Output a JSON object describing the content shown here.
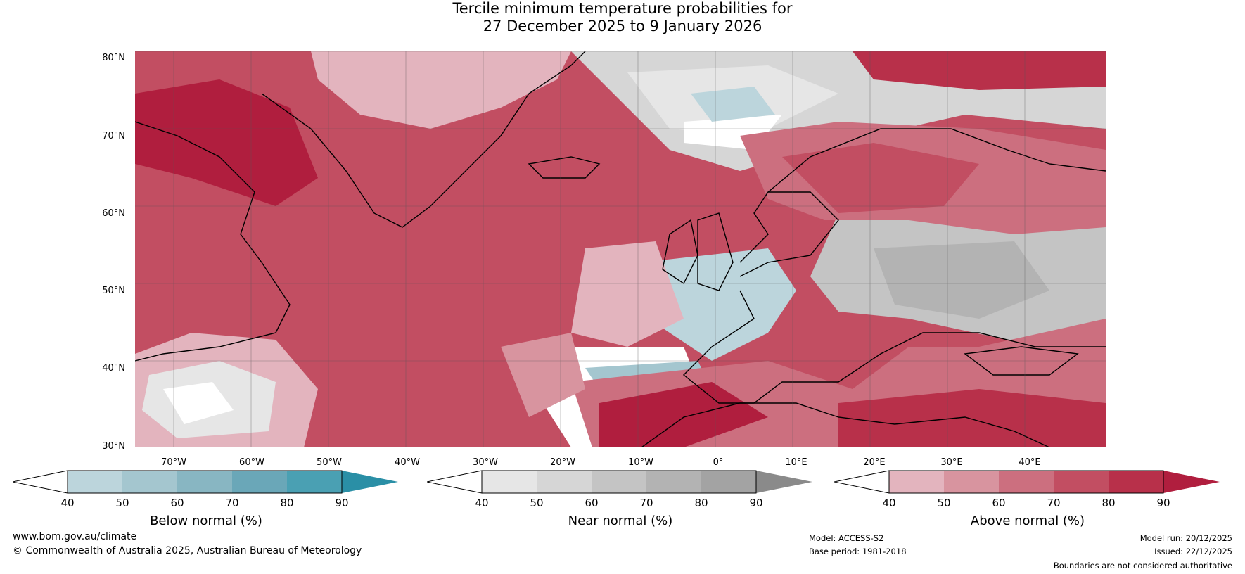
{
  "title": {
    "line1": "Tercile minimum temperature probabilities for",
    "line2": "27 December 2025 to 9 January 2026"
  },
  "map": {
    "lat_labels": [
      "80°N",
      "70°N",
      "60°N",
      "50°N",
      "40°N",
      "30°N"
    ],
    "lon_labels": [
      "70°W",
      "60°W",
      "50°W",
      "40°W",
      "30°W",
      "20°W",
      "10°W",
      "0°",
      "10°E",
      "20°E",
      "30°E",
      "40°E"
    ],
    "region": "North Atlantic and Europe"
  },
  "colorbars": [
    {
      "label": "Below normal (%)",
      "ticks": [
        "40",
        "50",
        "60",
        "70",
        "80",
        "90"
      ],
      "colors": [
        "#ffffff",
        "#bcd5dc",
        "#a4c6cf",
        "#88b6c2",
        "#6aa7b8",
        "#4aa0b3",
        "#2a8fa6"
      ]
    },
    {
      "label": "Near normal (%)",
      "ticks": [
        "40",
        "50",
        "60",
        "70",
        "80",
        "90"
      ],
      "colors": [
        "#ffffff",
        "#e6e6e6",
        "#d6d6d6",
        "#c4c4c4",
        "#b3b3b3",
        "#a3a3a3",
        "#8a8a8a"
      ]
    },
    {
      "label": "Above normal (%)",
      "ticks": [
        "40",
        "50",
        "60",
        "70",
        "80",
        "90"
      ],
      "colors": [
        "#ffffff",
        "#e3b4be",
        "#d8949f",
        "#cc6f7f",
        "#c24e62",
        "#b8304a",
        "#b01e3e"
      ]
    }
  ],
  "footer": {
    "website": "www.bom.gov.au/climate",
    "copyright": "© Commonwealth of Australia 2025, Australian Bureau of Meteorology",
    "model": "Model: ACCESS-S2",
    "base_period": "Base period: 1981-2018",
    "model_run": "Model run: 20/12/2025",
    "issued": "Issued: 22/12/2025",
    "disclaimer": "Boundaries are not considered authoritative"
  }
}
